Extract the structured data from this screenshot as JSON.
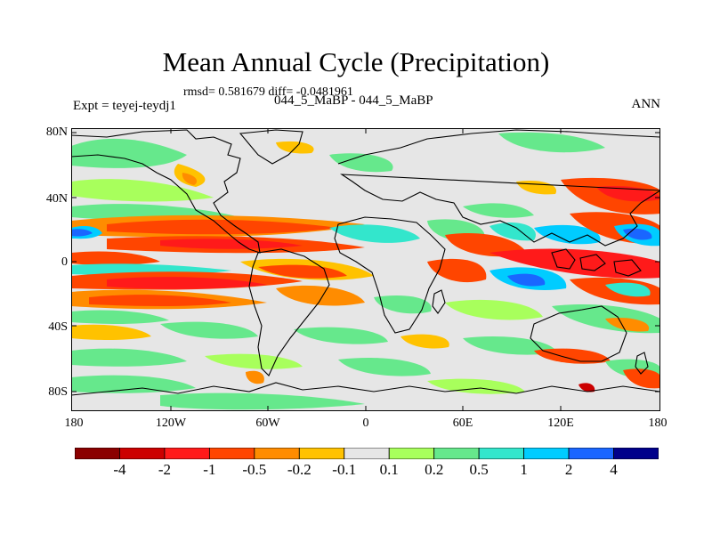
{
  "title": "Mean Annual Cycle (Precipitation)",
  "stats": "rmsd= 0.581679 diff= -0.0481961",
  "experiment": "Expt = teyej-teydj1",
  "case_label": "044_5_MaBP - 044_5_MaBP",
  "season": "ANN",
  "lat_ticks": [
    "80N",
    "40N",
    "0",
    "40S",
    "80S"
  ],
  "lon_ticks": [
    "180",
    "120W",
    "60W",
    "0",
    "60E",
    "120E",
    "180"
  ],
  "colorbar": {
    "colors": [
      "#8b0000",
      "#cc0000",
      "#ff1a1a",
      "#ff4500",
      "#ff8c00",
      "#ffc200",
      "#e6e6e6",
      "#a8ff5c",
      "#66e88c",
      "#33e6cc",
      "#00ccff",
      "#1a66ff",
      "#00008b"
    ],
    "labels": [
      "-4",
      "-2",
      "-1",
      "-0.5",
      "-0.2",
      "-0.1",
      "0.1",
      "0.2",
      "0.5",
      "1",
      "2",
      "4"
    ]
  }
}
